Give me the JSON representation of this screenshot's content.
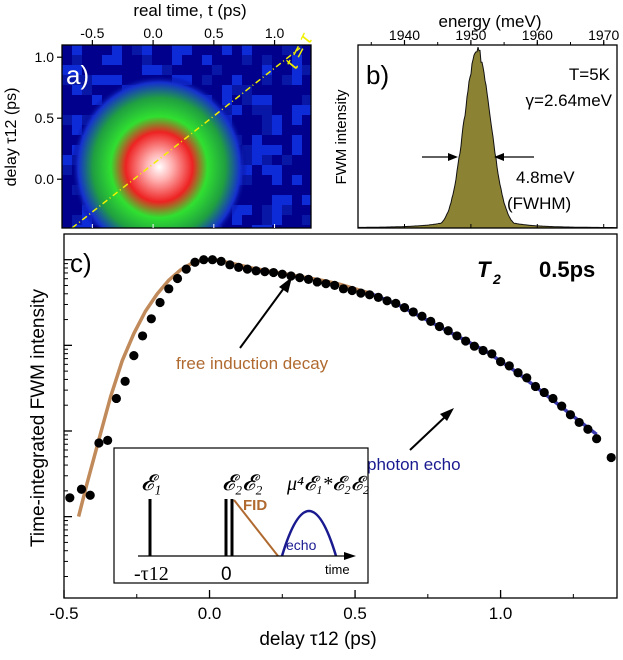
{
  "chart_data": [
    {
      "id": "a",
      "type": "heatmap",
      "panel_label": "a)",
      "xlabel": "real time, t (ps)",
      "ylabel": "delay τ12 (ps)",
      "x_ticks": [
        "-0.5",
        "0.0",
        "0.5",
        "1.0"
      ],
      "y_ticks": [
        "1.0",
        "0.5",
        "0.0"
      ],
      "xlim": [
        -0.75,
        1.3
      ],
      "ylim": [
        -0.4,
        1.1
      ],
      "diagonal_label": "t = τ",
      "colormap": [
        "#00008c",
        "#1030e0",
        "#20b030",
        "#40ff40",
        "#e02020",
        "#ff9090",
        "#ffffff"
      ],
      "peak": {
        "t": 0.05,
        "tau": 0.1
      }
    },
    {
      "id": "b",
      "type": "area",
      "panel_label": "b)",
      "xlabel": "energy (meV)",
      "ylabel": "FWM intensity",
      "x_ticks": [
        "1940",
        "1950",
        "1960",
        "1970"
      ],
      "xlim": [
        1933,
        1972
      ],
      "annotations": [
        "T=5K",
        "γ=2.64meV",
        "4.8meV",
        "(FWHM)"
      ],
      "peak_center": 1951,
      "fwhm": 4.8,
      "fill_color": "#8c8234"
    },
    {
      "id": "c",
      "type": "scatter",
      "panel_label": "c)",
      "xlabel": "delay τ12 (ps)",
      "ylabel": "Time-integrated FWM intensity",
      "x_ticks": [
        "-0.5",
        "0.0",
        "0.5",
        "1.0"
      ],
      "xlim": [
        -0.5,
        1.4
      ],
      "log_y": true,
      "title_parts": [
        "T",
        "2",
        "0.5ps"
      ],
      "annotations": {
        "fid": "free induction decay",
        "echo": "photon echo"
      },
      "x": [
        -0.48,
        -0.44,
        -0.41,
        -0.38,
        -0.35,
        -0.32,
        -0.29,
        -0.26,
        -0.23,
        -0.2,
        -0.17,
        -0.14,
        -0.11,
        -0.08,
        -0.05,
        -0.02,
        0.01,
        0.04,
        0.07,
        0.1,
        0.13,
        0.16,
        0.19,
        0.22,
        0.25,
        0.28,
        0.31,
        0.34,
        0.37,
        0.4,
        0.43,
        0.46,
        0.49,
        0.52,
        0.55,
        0.58,
        0.61,
        0.64,
        0.67,
        0.7,
        0.73,
        0.76,
        0.79,
        0.82,
        0.85,
        0.88,
        0.91,
        0.94,
        0.97,
        1.0,
        1.03,
        1.06,
        1.09,
        1.12,
        1.15,
        1.18,
        1.21,
        1.24,
        1.27,
        1.3,
        1.33,
        1.38
      ],
      "y": [
        -2.78,
        -2.68,
        -2.75,
        -2.14,
        -2.11,
        -1.62,
        -1.42,
        -1.12,
        -0.89,
        -0.69,
        -0.5,
        -0.34,
        -0.22,
        -0.11,
        -0.03,
        0.0,
        0.0,
        -0.02,
        -0.06,
        -0.09,
        -0.11,
        -0.13,
        -0.14,
        -0.15,
        -0.17,
        -0.19,
        -0.21,
        -0.23,
        -0.26,
        -0.28,
        -0.3,
        -0.34,
        -0.36,
        -0.39,
        -0.41,
        -0.44,
        -0.48,
        -0.51,
        -0.56,
        -0.61,
        -0.66,
        -0.72,
        -0.78,
        -0.83,
        -0.89,
        -0.95,
        -1.01,
        -1.06,
        -1.1,
        -1.19,
        -1.24,
        -1.32,
        -1.38,
        -1.48,
        -1.55,
        -1.62,
        -1.71,
        -1.81,
        -1.9,
        -1.98,
        -2.09,
        -2.31
      ],
      "series": [
        {
          "name": "free induction decay",
          "color": "#c08a5a",
          "x": [
            -0.45,
            -0.42,
            -0.38,
            -0.34,
            -0.3,
            -0.26,
            -0.22,
            -0.18,
            -0.14,
            -0.1,
            -0.06,
            -0.02,
            0.02,
            0.06,
            0.1,
            0.15,
            0.2,
            0.25,
            0.3,
            0.35,
            0.4,
            0.45,
            0.5,
            0.55
          ],
          "y": [
            -3.0,
            -2.6,
            -2.1,
            -1.6,
            -1.18,
            -0.86,
            -0.6,
            -0.4,
            -0.24,
            -0.12,
            -0.04,
            0.0,
            0.0,
            -0.03,
            -0.06,
            -0.1,
            -0.13,
            -0.16,
            -0.19,
            -0.22,
            -0.25,
            -0.29,
            -0.34,
            -0.39
          ]
        },
        {
          "name": "photon echo",
          "color": "#3a3ab0",
          "x": [
            0.55,
            0.65,
            0.75,
            0.85,
            0.95,
            1.05,
            1.15,
            1.25,
            1.33
          ],
          "y": [
            -0.39,
            -0.53,
            -0.71,
            -0.89,
            -1.07,
            -1.3,
            -1.56,
            -1.83,
            -2.04
          ]
        }
      ],
      "inset": {
        "labels": [
          "𝓔₁",
          "𝓔₂𝓔₂",
          "μ⁴𝓔₁*𝓔₂𝓔₂"
        ],
        "fid_label": "FID",
        "echo_label": "echo",
        "x_labels": [
          "-τ12",
          "0"
        ],
        "axis_label": "time"
      }
    }
  ]
}
